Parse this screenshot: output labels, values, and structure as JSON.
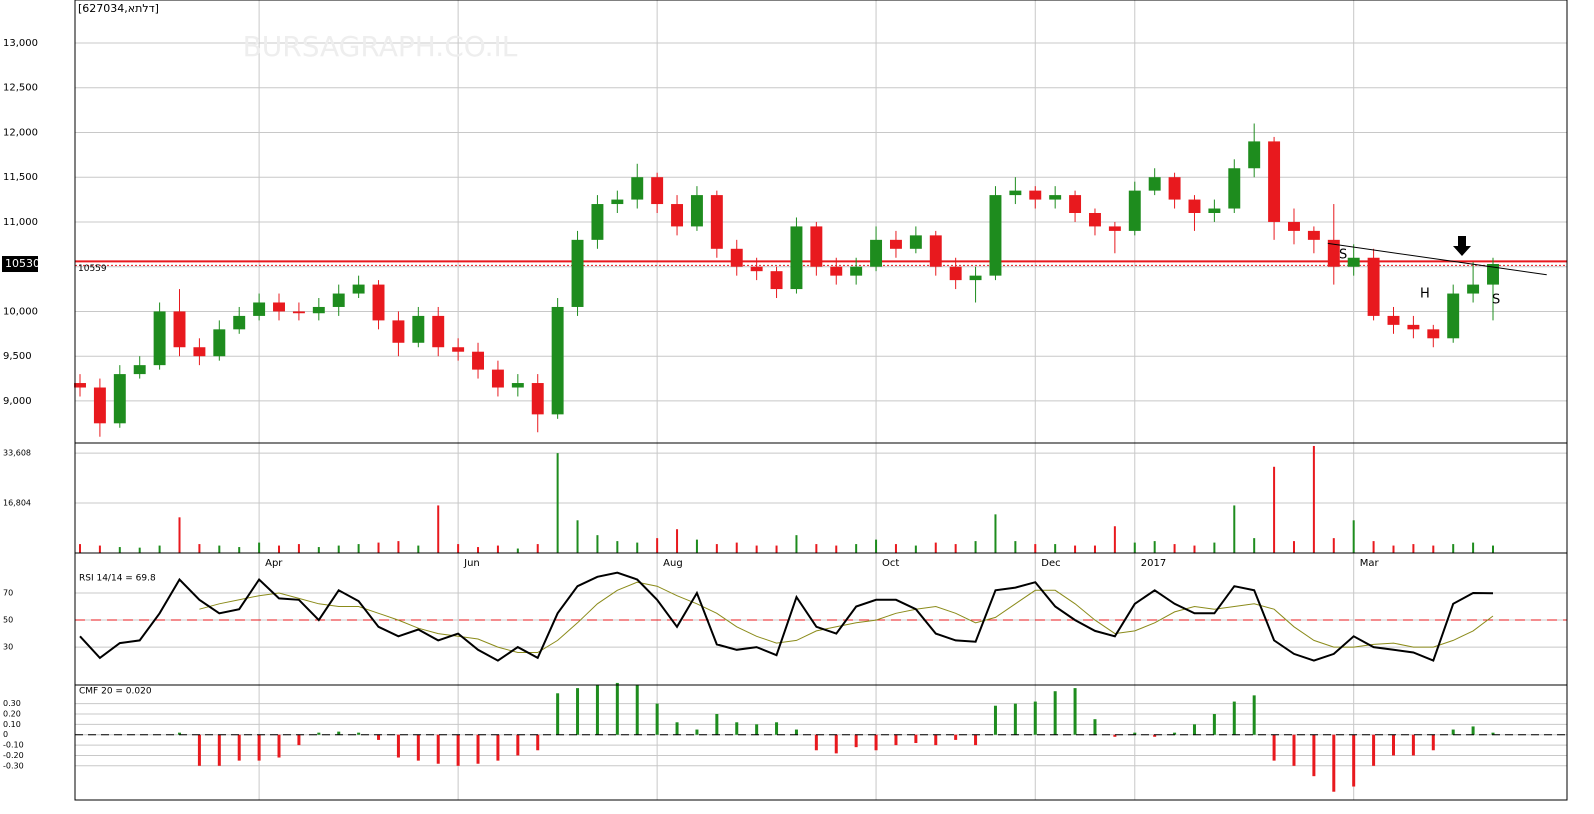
{
  "chart_data": {
    "type": "candlestick",
    "title": "[627034,דלתא]",
    "watermark": "BURSAGRAPH.CO.IL",
    "categories": [
      null,
      null,
      null,
      null,
      null,
      null,
      null,
      null,
      null,
      "Apr",
      null,
      null,
      null,
      null,
      null,
      null,
      null,
      null,
      null,
      "Jun",
      null,
      null,
      null,
      null,
      null,
      null,
      null,
      null,
      null,
      "Aug",
      null,
      null,
      null,
      null,
      null,
      null,
      null,
      null,
      null,
      null,
      "Oct",
      null,
      null,
      null,
      null,
      null,
      null,
      null,
      "Dec",
      null,
      null,
      null,
      null,
      "2017",
      null,
      null,
      null,
      null,
      null,
      null,
      null,
      null,
      null,
      null,
      "Mar",
      null,
      null,
      null,
      null,
      null,
      null,
      null
    ],
    "open": [
      9200,
      9150,
      8750,
      9300,
      9400,
      10000,
      9600,
      9500,
      9800,
      9950,
      10100,
      10000,
      9980,
      10050,
      10200,
      10300,
      9900,
      9650,
      9950,
      9600,
      9550,
      9350,
      9150,
      9200,
      8850,
      10050,
      10800,
      11200,
      11250,
      11500,
      11200,
      10950,
      11300,
      10700,
      10500,
      10450,
      10250,
      10950,
      10500,
      10400,
      10500,
      10800,
      10700,
      10850,
      10500,
      10350,
      10400,
      11300,
      11350,
      11250,
      11300,
      11100,
      10950,
      10900,
      11350,
      11500,
      11250,
      11100,
      11150,
      11600,
      11900,
      11000,
      10900,
      10800,
      10500,
      10600,
      9950,
      9850,
      9800,
      9700,
      10200,
      10300
    ],
    "high": [
      9300,
      9250,
      9400,
      9500,
      10100,
      10250,
      9700,
      9900,
      10050,
      10200,
      10200,
      10100,
      10150,
      10300,
      10400,
      10350,
      10000,
      10050,
      10050,
      9700,
      9650,
      9450,
      9300,
      9300,
      10150,
      10900,
      11300,
      11350,
      11650,
      11550,
      11300,
      11400,
      11350,
      10800,
      10600,
      10500,
      11050,
      11000,
      10600,
      10600,
      10950,
      10900,
      10950,
      10900,
      10600,
      10500,
      11400,
      11500,
      11400,
      11400,
      11350,
      11150,
      11000,
      11450,
      11600,
      11550,
      11300,
      11250,
      11700,
      12100,
      11950,
      11150,
      10950,
      11200,
      10750,
      10700,
      10050,
      9950,
      9850,
      10300,
      10550,
      10600
    ],
    "low": [
      9050,
      8600,
      8700,
      9250,
      9350,
      9500,
      9400,
      9450,
      9750,
      9900,
      9900,
      9900,
      9900,
      9950,
      10150,
      9800,
      9500,
      9600,
      9500,
      9450,
      9250,
      9050,
      9050,
      8650,
      8800,
      9950,
      10700,
      11100,
      11150,
      11100,
      10850,
      10900,
      10600,
      10400,
      10350,
      10150,
      10200,
      10400,
      10300,
      10300,
      10450,
      10600,
      10650,
      10400,
      10250,
      10100,
      10350,
      11200,
      11150,
      11150,
      11000,
      10850,
      10650,
      10850,
      11300,
      11150,
      10900,
      11000,
      11100,
      11500,
      10800,
      10750,
      10650,
      10300,
      10400,
      9900,
      9750,
      9700,
      9600,
      9650,
      10100,
      9900
    ],
    "close": [
      9150,
      8750,
      9300,
      9400,
      10000,
      9600,
      9500,
      9800,
      9950,
      10100,
      10000,
      9980,
      10050,
      10200,
      10300,
      9900,
      9650,
      9950,
      9600,
      9550,
      9350,
      9150,
      9200,
      8850,
      10050,
      10800,
      11200,
      11250,
      11500,
      11200,
      10950,
      11300,
      10700,
      10500,
      10450,
      10250,
      10950,
      10500,
      10400,
      10500,
      10800,
      10700,
      10850,
      10500,
      10350,
      10400,
      11300,
      11350,
      11250,
      11300,
      11100,
      10950,
      10900,
      11350,
      11500,
      11250,
      11100,
      11150,
      11600,
      11900,
      11000,
      10900,
      10800,
      10500,
      10600,
      9950,
      9850,
      9800,
      9700,
      10200,
      10300,
      10530
    ],
    "up_color": "#1e8c1e",
    "down_color": "#e8191e",
    "ylim": [
      8530,
      13480
    ],
    "yticks": [
      {
        "value": 9000,
        "label": "9,000"
      },
      {
        "value": 9500,
        "label": "9,500"
      },
      {
        "value": 10000,
        "label": "10,000"
      },
      {
        "value": 10500,
        "label": "10,500"
      },
      {
        "value": 11000,
        "label": "11,000"
      },
      {
        "value": 11500,
        "label": "11,500"
      },
      {
        "value": 12000,
        "label": "12,000"
      },
      {
        "value": 12500,
        "label": "12,500"
      },
      {
        "value": 13000,
        "label": "13,000"
      }
    ],
    "grid": true,
    "reference_line": 10559,
    "trendline": {
      "x": [
        62.7,
        73.7
      ],
      "y": [
        10760,
        10410
      ]
    },
    "annotations": [
      "S",
      "H",
      "S"
    ],
    "volume": {
      "values": [
        3000,
        2500,
        2000,
        1800,
        2500,
        12000,
        3000,
        2500,
        2000,
        3500,
        2500,
        3000,
        2000,
        2500,
        3000,
        3500,
        4000,
        2500,
        16000,
        3000,
        2000,
        2500,
        1500,
        3000,
        33600,
        11000,
        6000,
        4000,
        3500,
        5000,
        8000,
        4500,
        3000,
        3500,
        2500,
        2500,
        6000,
        3000,
        2500,
        3000,
        4500,
        3000,
        2500,
        3500,
        3000,
        4000,
        13000,
        4000,
        3000,
        3000,
        2500,
        2500,
        9000,
        3500,
        4000,
        3000,
        2500,
        3500,
        16000,
        5000,
        29000,
        4000,
        36000,
        5000,
        11000,
        4000,
        2500,
        3000,
        2500,
        3000,
        3500,
        2500
      ],
      "ylim": [
        0,
        37000
      ],
      "yticks": [
        {
          "value": 33608,
          "label": "33,608"
        },
        {
          "value": 16804,
          "label": "16,804"
        }
      ]
    },
    "rsi": {
      "label": "RSI 14/14 = 69.8",
      "values": [
        38,
        22,
        33,
        35,
        55,
        80,
        65,
        55,
        58,
        80,
        66,
        65,
        50,
        72,
        64,
        45,
        38,
        43,
        35,
        40,
        28,
        20,
        30,
        22,
        55,
        75,
        82,
        85,
        80,
        65,
        45,
        70,
        32,
        28,
        30,
        24,
        67,
        45,
        40,
        60,
        65,
        65,
        58,
        40,
        35,
        34,
        72,
        74,
        78,
        60,
        50,
        42,
        38,
        62,
        72,
        62,
        55,
        55,
        75,
        72,
        35,
        25,
        20,
        25,
        38,
        30,
        28,
        26,
        20,
        62,
        70,
        69.8
      ],
      "ma": [
        null,
        null,
        null,
        null,
        null,
        null,
        58,
        62,
        65,
        68,
        70,
        66,
        62,
        60,
        60,
        55,
        50,
        44,
        40,
        38,
        36,
        30,
        26,
        26,
        35,
        48,
        62,
        72,
        78,
        75,
        68,
        62,
        55,
        45,
        38,
        33,
        35,
        42,
        45,
        48,
        50,
        55,
        58,
        60,
        55,
        48,
        52,
        62,
        72,
        72,
        62,
        50,
        40,
        42,
        48,
        56,
        60,
        58,
        60,
        62,
        58,
        45,
        35,
        30,
        30,
        32,
        33,
        30,
        30,
        35,
        42,
        53
      ],
      "line_color": "#000000",
      "ma_color": "#8b8b1a",
      "reference": 50,
      "ylim": [
        2,
        87
      ],
      "yticks": [
        30,
        50,
        70
      ]
    },
    "cmf": {
      "label": "CMF 20 = 0.020",
      "values": [
        null,
        null,
        null,
        null,
        null,
        0.02,
        -0.3,
        -0.3,
        -0.25,
        -0.25,
        -0.22,
        -0.1,
        0.02,
        0.03,
        0.02,
        -0.05,
        -0.22,
        -0.25,
        -0.28,
        -0.3,
        -0.28,
        -0.25,
        -0.2,
        -0.15,
        0.4,
        0.45,
        0.48,
        0.5,
        0.48,
        0.3,
        0.12,
        0.05,
        0.2,
        0.12,
        0.1,
        0.12,
        0.05,
        -0.15,
        -0.18,
        -0.12,
        -0.15,
        -0.1,
        -0.08,
        -0.1,
        -0.05,
        -0.1,
        0.28,
        0.3,
        0.32,
        0.42,
        0.45,
        0.15,
        -0.02,
        0.02,
        -0.02,
        0.02,
        0.1,
        0.2,
        0.32,
        0.38,
        -0.25,
        -0.3,
        -0.4,
        -0.55,
        -0.5,
        -0.3,
        -0.2,
        -0.2,
        -0.15,
        0.05,
        0.08,
        0.02
      ],
      "ylim": [
        -0.63,
        0.48
      ],
      "yticks": [
        {
          "value": 0.3,
          "label": "0.30"
        },
        {
          "value": 0.2,
          "label": "0.20"
        },
        {
          "value": 0.1,
          "label": "0.10"
        },
        0,
        {
          "value": -0.1,
          "label": "-0.10"
        },
        {
          "value": -0.2,
          "label": "-0.20"
        },
        {
          "value": -0.3,
          "label": "-0.30"
        }
      ]
    }
  }
}
